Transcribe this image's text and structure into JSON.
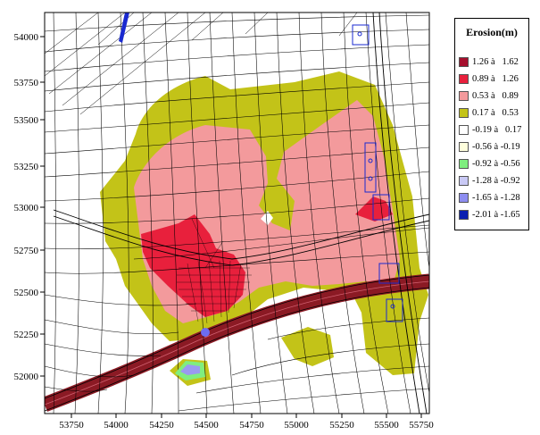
{
  "legend": {
    "title": "Erosion(m)",
    "items": [
      {
        "label": "1.26 à   1.62",
        "color": "#a50f2d"
      },
      {
        "label": "0.89 à   1.26",
        "color": "#e8203c"
      },
      {
        "label": "0.53 à   0.89",
        "color": "#f39a9c"
      },
      {
        "label": "0.17 à   0.53",
        "color": "#c3c318"
      },
      {
        "label": "-0.19 à   0.17",
        "color": "#ffffff"
      },
      {
        "label": "-0.56 à -0.19",
        "color": "#ffffdd"
      },
      {
        "label": "-0.92 à -0.56",
        "color": "#7fee7f"
      },
      {
        "label": "-1.28 à -0.92",
        "color": "#c9c9f5"
      },
      {
        "label": "-1.65 à -1.28",
        "color": "#8d8df0"
      },
      {
        "label": "-2.01 à -1.65",
        "color": "#0a1fb0"
      }
    ]
  },
  "axes": {
    "x_ticks": [
      "53750",
      "54000",
      "54250",
      "54500",
      "54750",
      "55000",
      "55250",
      "55500",
      "55750"
    ],
    "y_ticks": [
      "54000",
      "53750",
      "53500",
      "53250",
      "53000",
      "52750",
      "52500",
      "52250",
      "52000"
    ]
  }
}
